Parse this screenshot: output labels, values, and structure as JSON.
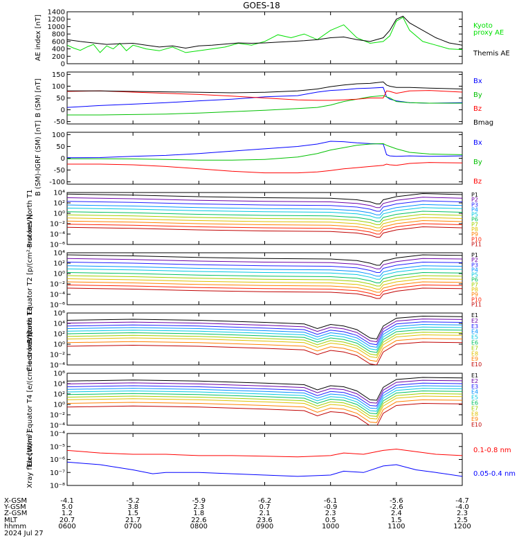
{
  "title": "GOES-18",
  "footer": {
    "labels": [
      "X-GSM",
      "Y-GSM",
      "Z-GSM",
      "MLT",
      "hhmm",
      "2024 Jul 27"
    ],
    "columns": [
      {
        "x": "-4.1",
        "y": "5.0",
        "z": "1.2",
        "mlt": "20.7",
        "hhmm": "0600"
      },
      {
        "x": "-5.2",
        "y": "3.8",
        "z": "1.5",
        "mlt": "21.7",
        "hhmm": "0700"
      },
      {
        "x": "-5.9",
        "y": "2.3",
        "z": "1.8",
        "mlt": "22.6",
        "hhmm": "0800"
      },
      {
        "x": "-6.2",
        "y": "0.7",
        "z": "2.1",
        "mlt": "23.6",
        "hhmm": "0900"
      },
      {
        "x": "-6.1",
        "y": "-0.9",
        "z": "2.3",
        "mlt": "0.5",
        "hhmm": "1000"
      },
      {
        "x": "-5.6",
        "y": "-2.6",
        "z": "2.4",
        "mlt": "1.5",
        "hhmm": "1100"
      },
      {
        "x": "-4.7",
        "y": "-4.0",
        "z": "2.3",
        "mlt": "2.5",
        "hhmm": "1200"
      }
    ]
  },
  "chart_data": [
    {
      "type": "line",
      "ylabel": "AE index [nT]",
      "ylim": [
        0,
        1400
      ],
      "yticks": [
        "0",
        "200",
        "400",
        "600",
        "800",
        "1000",
        "1200",
        "1400"
      ],
      "series": [
        {
          "name": "Kyoto proxy AE",
          "color": "#00e000",
          "x": [
            6.0,
            6.1,
            6.2,
            6.3,
            6.4,
            6.5,
            6.6,
            6.7,
            6.8,
            6.9,
            7.0,
            7.2,
            7.4,
            7.6,
            7.8,
            8.0,
            8.2,
            8.4,
            8.6,
            8.8,
            9.0,
            9.2,
            9.4,
            9.6,
            9.8,
            10.0,
            10.2,
            10.4,
            10.6,
            10.8,
            10.9,
            11.0,
            11.1,
            11.2,
            11.4,
            11.6,
            11.8,
            12.0
          ],
          "y": [
            500,
            420,
            360,
            450,
            520,
            300,
            480,
            400,
            550,
            350,
            500,
            400,
            350,
            450,
            300,
            350,
            400,
            450,
            550,
            500,
            600,
            780,
            700,
            800,
            650,
            900,
            1050,
            700,
            550,
            600,
            750,
            1150,
            1250,
            900,
            600,
            500,
            400,
            380
          ]
        },
        {
          "name": "Themis AE",
          "color": "#000000",
          "x": [
            6.0,
            6.2,
            6.4,
            6.6,
            6.8,
            7.0,
            7.2,
            7.4,
            7.6,
            7.8,
            8.0,
            8.2,
            8.4,
            8.6,
            8.8,
            9.0,
            9.2,
            9.4,
            9.6,
            9.8,
            10.0,
            10.2,
            10.4,
            10.6,
            10.8,
            10.9,
            11.0,
            11.1,
            11.2,
            11.4,
            11.6,
            11.8,
            12.0
          ],
          "y": [
            650,
            600,
            560,
            520,
            540,
            550,
            500,
            450,
            480,
            420,
            480,
            500,
            530,
            560,
            550,
            560,
            580,
            600,
            620,
            650,
            700,
            720,
            650,
            600,
            700,
            900,
            1200,
            1280,
            1100,
            900,
            700,
            560,
            500
          ]
        }
      ]
    },
    {
      "type": "line",
      "ylabel": "B (SM) [nT]",
      "ylim": [
        -60,
        160
      ],
      "yticks": [
        "-50",
        "0",
        "50",
        "100",
        "150"
      ],
      "series": [
        {
          "name": "Bx",
          "color": "#0000ff",
          "x": [
            6.0,
            6.5,
            7.0,
            7.5,
            8.0,
            8.5,
            9.0,
            9.5,
            9.8,
            10.0,
            10.2,
            10.4,
            10.6,
            10.8,
            10.85,
            10.9,
            11.0,
            11.2,
            11.5,
            12.0
          ],
          "y": [
            10,
            18,
            24,
            30,
            38,
            45,
            55,
            60,
            75,
            82,
            85,
            90,
            92,
            95,
            55,
            45,
            38,
            30,
            28,
            30
          ]
        },
        {
          "name": "By",
          "color": "#00c000",
          "x": [
            6.0,
            6.5,
            7.0,
            7.5,
            8.0,
            8.5,
            9.0,
            9.5,
            9.8,
            10.0,
            10.2,
            10.4,
            10.6,
            10.8,
            10.85,
            10.9,
            11.0,
            11.2,
            11.5,
            12.0
          ],
          "y": [
            -22,
            -22,
            -20,
            -18,
            -14,
            -8,
            -2,
            5,
            10,
            20,
            35,
            45,
            55,
            60,
            55,
            50,
            35,
            30,
            28,
            28
          ]
        },
        {
          "name": "Bz",
          "color": "#ff0000",
          "x": [
            6.0,
            6.5,
            7.0,
            7.5,
            8.0,
            8.5,
            9.0,
            9.5,
            9.8,
            10.0,
            10.2,
            10.4,
            10.6,
            10.8,
            10.85,
            10.9,
            11.0,
            11.2,
            11.5,
            12.0
          ],
          "y": [
            78,
            80,
            75,
            70,
            65,
            58,
            50,
            42,
            40,
            40,
            42,
            45,
            50,
            50,
            80,
            78,
            70,
            80,
            82,
            75
          ]
        },
        {
          "name": "Bmag",
          "color": "#000000",
          "x": [
            6.0,
            6.5,
            7.0,
            7.5,
            8.0,
            8.5,
            9.0,
            9.5,
            9.8,
            10.0,
            10.2,
            10.4,
            10.6,
            10.8,
            10.85,
            10.9,
            11.0,
            11.2,
            11.5,
            12.0
          ],
          "y": [
            80,
            80,
            78,
            76,
            74,
            72,
            74,
            80,
            88,
            98,
            105,
            110,
            112,
            118,
            105,
            100,
            95,
            95,
            92,
            88
          ]
        }
      ]
    },
    {
      "type": "line",
      "ylabel": "B (SM)-IGRF (SM) [nT]",
      "ylim": [
        -110,
        110
      ],
      "yticks": [
        "-100",
        "-50",
        "0",
        "50",
        "100"
      ],
      "series": [
        {
          "name": "Bx",
          "color": "#0000ff",
          "x": [
            6.0,
            6.5,
            7.0,
            7.5,
            8.0,
            8.5,
            9.0,
            9.5,
            9.8,
            10.0,
            10.2,
            10.4,
            10.6,
            10.8,
            10.85,
            10.9,
            11.0,
            11.2,
            11.5,
            12.0
          ],
          "y": [
            2,
            3,
            8,
            12,
            20,
            30,
            40,
            50,
            60,
            72,
            70,
            65,
            62,
            60,
            15,
            10,
            8,
            10,
            8,
            10
          ]
        },
        {
          "name": "By",
          "color": "#00c000",
          "x": [
            6.0,
            6.5,
            7.0,
            7.5,
            8.0,
            8.5,
            9.0,
            9.5,
            9.8,
            10.0,
            10.2,
            10.4,
            10.6,
            10.8,
            10.85,
            10.9,
            11.0,
            11.2,
            11.5,
            12.0
          ],
          "y": [
            -2,
            -2,
            -3,
            -5,
            -8,
            -8,
            -5,
            5,
            20,
            35,
            45,
            55,
            60,
            62,
            55,
            50,
            40,
            25,
            18,
            15
          ]
        },
        {
          "name": "Bz",
          "color": "#ff0000",
          "x": [
            6.0,
            6.5,
            7.0,
            7.5,
            8.0,
            8.5,
            9.0,
            9.5,
            9.8,
            10.0,
            10.2,
            10.4,
            10.6,
            10.8,
            10.85,
            10.9,
            11.0,
            11.2,
            11.5,
            12.0
          ],
          "y": [
            -25,
            -25,
            -28,
            -35,
            -45,
            -55,
            -62,
            -62,
            -58,
            -52,
            -45,
            -40,
            -35,
            -30,
            -25,
            -28,
            -30,
            -22,
            -18,
            -20
          ]
        }
      ]
    },
    {
      "type": "line",
      "log": true,
      "ylabel": "Protons North T1",
      "ylim": [
        -6,
        4
      ],
      "yticks": [
        "10⁻⁶",
        "10⁻⁴",
        "10⁻²",
        "10⁰",
        "10²",
        "10⁴"
      ],
      "channels": [
        "P1",
        "P2",
        "P3",
        "P4",
        "P5",
        "P6",
        "P7",
        "P8",
        "P9",
        "P10",
        "P11"
      ],
      "colors": [
        "#000000",
        "#6a00a8",
        "#2020ff",
        "#0090ff",
        "#00c8e0",
        "#00c060",
        "#a0d000",
        "#e0c000",
        "#ff8000",
        "#ff2000",
        "#c00000"
      ],
      "curve": {
        "x": [
          6.0,
          7.0,
          8.0,
          9.0,
          10.0,
          10.4,
          10.6,
          10.7,
          10.75,
          10.8,
          11.0,
          11.4,
          12.0
        ],
        "y": [
          3.7,
          3.5,
          3.2,
          3.0,
          2.9,
          2.6,
          2.2,
          1.8,
          1.8,
          2.6,
          3.2,
          3.8,
          3.6
        ]
      },
      "offsets": [
        0,
        -0.7,
        -1.4,
        -2.1,
        -2.7,
        -3.4,
        -4.0,
        -4.6,
        -5.2,
        -5.8,
        -6.4
      ]
    },
    {
      "type": "line",
      "log": true,
      "ylabel": "Protons Equator T2 [p/(cm²-s-sr-keV)]",
      "ylim": [
        -6,
        4
      ],
      "yticks": [
        "10⁻⁶",
        "10⁻⁴",
        "10⁻²",
        "10⁰",
        "10²",
        "10⁴"
      ],
      "channels": [
        "P1",
        "P2",
        "P3",
        "P4",
        "P5",
        "P6",
        "P7",
        "P8",
        "P9",
        "P10",
        "P11"
      ],
      "colors": [
        "#000000",
        "#6a00a8",
        "#2020ff",
        "#0090ff",
        "#00c8e0",
        "#00c060",
        "#a0d000",
        "#e0c000",
        "#ff8000",
        "#ff2000",
        "#c00000"
      ],
      "curve": {
        "x": [
          6.0,
          7.0,
          8.0,
          9.0,
          10.0,
          10.4,
          10.6,
          10.7,
          10.75,
          10.8,
          11.0,
          11.4,
          12.0
        ],
        "y": [
          3.6,
          3.4,
          3.1,
          2.9,
          2.8,
          2.5,
          2.0,
          1.6,
          1.6,
          2.4,
          3.0,
          3.6,
          3.5
        ]
      },
      "offsets": [
        0,
        -0.7,
        -1.4,
        -2.1,
        -2.7,
        -3.4,
        -4.0,
        -4.6,
        -5.2,
        -5.8,
        -6.4
      ]
    },
    {
      "type": "line",
      "log": true,
      "ylabel": "Electrons North T3",
      "ylim": [
        -4,
        6
      ],
      "yticks": [
        "10⁻⁴",
        "10⁻²",
        "10⁰",
        "10²",
        "10⁴",
        "10⁶"
      ],
      "channels": [
        "E1",
        "E2",
        "E3",
        "E4",
        "E5",
        "E6",
        "E7",
        "E8",
        "E9",
        "E10"
      ],
      "colors": [
        "#000000",
        "#6a00a8",
        "#2020ff",
        "#0090ff",
        "#00c8e0",
        "#00c060",
        "#a0d000",
        "#e0c000",
        "#ff8000",
        "#c00000"
      ],
      "curve": {
        "x": [
          6.0,
          7.0,
          8.0,
          9.0,
          9.6,
          9.8,
          10.0,
          10.2,
          10.4,
          10.6,
          10.7,
          10.8,
          11.0,
          11.4,
          12.0
        ],
        "y": [
          4.6,
          4.8,
          4.6,
          4.2,
          3.9,
          3.0,
          3.8,
          3.5,
          2.8,
          1.2,
          1.0,
          3.5,
          5.0,
          5.4,
          5.3
        ]
      },
      "offsets": [
        0,
        -0.55,
        -1.1,
        -1.6,
        -2.1,
        -2.6,
        -3.1,
        -3.6,
        -4.3,
        -5.0
      ]
    },
    {
      "type": "line",
      "log": true,
      "ylabel": "Electrons Equator T4 [e/(cm²-s-sr-keV)]",
      "ylim": [
        -4,
        6
      ],
      "yticks": [
        "10⁻⁴",
        "10⁻²",
        "10⁰",
        "10²",
        "10⁴",
        "10⁶"
      ],
      "channels": [
        "E1",
        "E2",
        "E3",
        "E4",
        "E5",
        "E6",
        "E7",
        "E8",
        "E9",
        "E10"
      ],
      "colors": [
        "#000000",
        "#6a00a8",
        "#2020ff",
        "#0090ff",
        "#00c8e0",
        "#00c060",
        "#a0d000",
        "#e0c000",
        "#ff8000",
        "#c00000"
      ],
      "curve": {
        "x": [
          6.0,
          7.0,
          8.0,
          9.0,
          9.6,
          9.8,
          10.0,
          10.2,
          10.4,
          10.6,
          10.7,
          10.8,
          11.0,
          11.4,
          12.0
        ],
        "y": [
          4.5,
          4.7,
          4.5,
          4.1,
          3.8,
          2.8,
          3.6,
          3.4,
          2.6,
          0.9,
          0.8,
          3.3,
          4.8,
          5.2,
          5.1
        ]
      },
      "offsets": [
        0,
        -0.55,
        -1.1,
        -1.6,
        -2.1,
        -2.6,
        -3.1,
        -3.6,
        -4.3,
        -5.0
      ]
    },
    {
      "type": "line",
      "log": true,
      "ylabel": "Xray flux [W/m²]",
      "ylim": [
        -8,
        -4
      ],
      "yticks": [
        "10⁻⁸",
        "10⁻⁷",
        "10⁻⁶",
        "10⁻⁵",
        "10⁻⁴"
      ],
      "series": [
        {
          "name": "0.1-0.8 nm",
          "color": "#ff0000",
          "x": [
            6.0,
            6.5,
            7.0,
            7.5,
            8.0,
            8.5,
            9.0,
            9.5,
            10.0,
            10.2,
            10.5,
            10.8,
            11.0,
            11.3,
            11.6,
            12.0
          ],
          "y": [
            -5.3,
            -5.5,
            -5.6,
            -5.6,
            -5.7,
            -5.7,
            -5.75,
            -5.8,
            -5.7,
            -5.5,
            -5.6,
            -5.3,
            -5.2,
            -5.4,
            -5.6,
            -5.7
          ]
        },
        {
          "name": "0.05-0.4 nm",
          "color": "#0000ff",
          "x": [
            6.0,
            6.5,
            7.0,
            7.3,
            7.5,
            8.0,
            8.5,
            9.0,
            9.5,
            10.0,
            10.2,
            10.5,
            10.8,
            11.0,
            11.3,
            11.6,
            12.0
          ],
          "y": [
            -6.2,
            -6.4,
            -6.8,
            -7.1,
            -7.0,
            -7.0,
            -7.1,
            -7.2,
            -7.3,
            -7.2,
            -6.9,
            -7.0,
            -6.5,
            -6.4,
            -6.8,
            -7.0,
            -7.3
          ]
        }
      ]
    }
  ]
}
